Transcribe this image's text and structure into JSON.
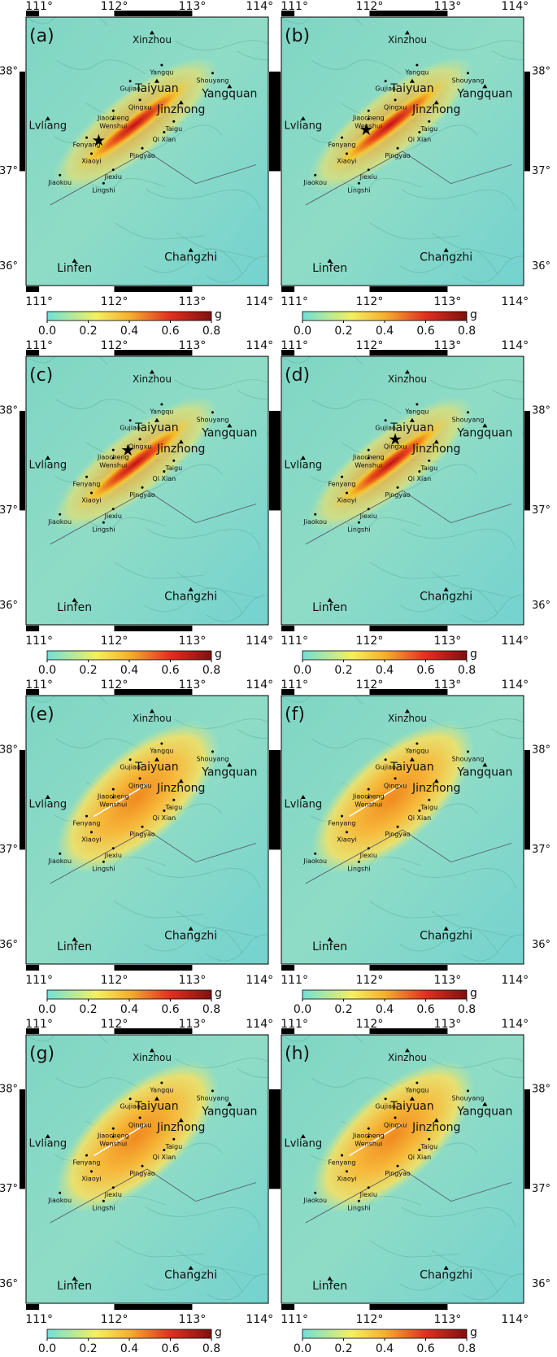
{
  "panels": [
    {
      "label": "(a)"
    },
    {
      "label": "(b)"
    },
    {
      "label": "(c)"
    },
    {
      "label": "(d)"
    },
    {
      "label": "(e)"
    },
    {
      "label": "(f)"
    },
    {
      "label": "(g)"
    },
    {
      "label": "(h)"
    }
  ],
  "cities": [
    "Xinzhou",
    "Yangqu",
    "Shouyang",
    "Gujiao",
    "Taiyuan",
    "Yangquan",
    "Qingxu",
    "Jinzhong",
    "Jiaocheng",
    "Wenshui",
    "Taigu",
    "Lvliang",
    "Fenyang",
    "Qi Xian",
    "Xiaoyi",
    "Pingyao",
    "Jiaokou",
    "Jiexiu",
    "Lingshi",
    "Linfen",
    "Changzhi"
  ],
  "lon_ticks": [
    "111°",
    "112°",
    "113°",
    "114°"
  ],
  "lat_ticks": [
    "38°",
    "37°",
    "36°"
  ],
  "colorbar": {
    "ticks": [
      "0.0",
      "0.2",
      "0.4",
      "0.6",
      "0.8"
    ],
    "unit": "g"
  }
}
